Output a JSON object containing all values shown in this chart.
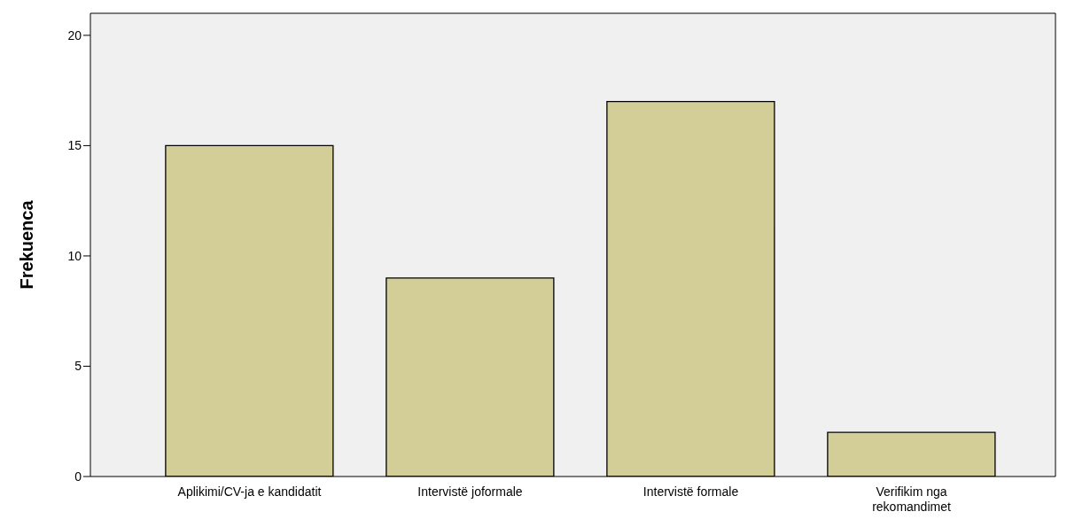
{
  "chart_data": {
    "type": "bar",
    "ylabel": "Frekuenca",
    "categories": [
      "Aplikimi/CV-ja e kandidatit",
      "Intervistë joformale",
      "Intervistë formale",
      "Verifikim nga\nrekomandimet"
    ],
    "values": [
      15,
      9,
      17,
      2
    ],
    "color": "#d3ce97",
    "ylim": [
      0,
      21
    ],
    "yticks": [
      0,
      5,
      10,
      15,
      20
    ],
    "grid": false
  }
}
